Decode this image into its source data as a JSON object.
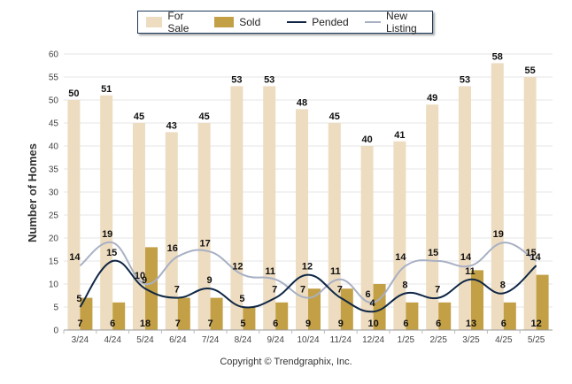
{
  "chart_data": {
    "type": "bar",
    "categories": [
      "3/24",
      "4/24",
      "5/24",
      "6/24",
      "7/24",
      "8/24",
      "9/24",
      "10/24",
      "11/24",
      "12/24",
      "1/25",
      "2/25",
      "3/25",
      "4/25",
      "5/25"
    ],
    "ylabel": "Number of Homes",
    "ylim": [
      0,
      60
    ],
    "yticks": [
      0,
      5,
      10,
      15,
      20,
      25,
      30,
      35,
      40,
      45,
      50,
      55,
      60
    ],
    "grid": true,
    "legend_position": "top",
    "series": [
      {
        "name": "For Sale",
        "kind": "bar",
        "color": "#eddcc0",
        "values": [
          50,
          51,
          45,
          43,
          45,
          53,
          53,
          48,
          45,
          40,
          41,
          49,
          53,
          58,
          55
        ]
      },
      {
        "name": "Sold",
        "kind": "bar",
        "color": "#c3a045",
        "values": [
          7,
          6,
          18,
          7,
          7,
          5,
          6,
          9,
          9,
          10,
          6,
          6,
          13,
          6,
          12
        ]
      },
      {
        "name": "Pended",
        "kind": "line",
        "color": "#0f2744",
        "values": [
          5,
          15,
          9,
          7,
          9,
          5,
          7,
          12,
          7,
          4,
          8,
          7,
          11,
          8,
          14
        ]
      },
      {
        "name": "New Listing",
        "kind": "line",
        "color": "#a8b0c4",
        "values": [
          14,
          19,
          10,
          16,
          17,
          12,
          11,
          7,
          11,
          6,
          14,
          15,
          14,
          19,
          15
        ]
      }
    ]
  },
  "copyright": "Copyright © Trendgraphix, Inc."
}
